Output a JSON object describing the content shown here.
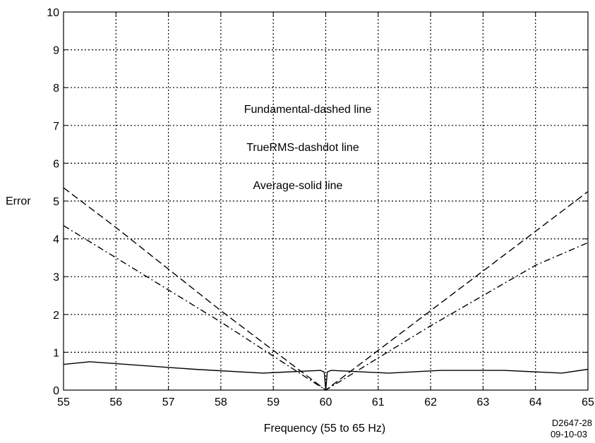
{
  "chart_data": {
    "type": "line",
    "xlabel": "Frequency (55 to 65 Hz)",
    "ylabel": "Error",
    "xlim": [
      55,
      65
    ],
    "ylim": [
      0,
      10
    ],
    "xticks": [
      55,
      56,
      57,
      58,
      59,
      60,
      61,
      62,
      63,
      64,
      65
    ],
    "yticks": [
      0,
      1,
      2,
      3,
      4,
      5,
      6,
      7,
      8,
      9,
      10
    ],
    "grid": true,
    "annotations": [
      "Fundamental-dashed line",
      "TrueRMS-dashdot line",
      "Average-solid line"
    ],
    "figure_code": [
      "D2647-28",
      "09-10-03"
    ],
    "series": [
      {
        "style": "dashed",
        "x": [
          55,
          56,
          57,
          58,
          59,
          60,
          61,
          62,
          63,
          64,
          65
        ],
        "y": [
          5.35,
          4.3,
          3.2,
          2.1,
          1.05,
          0,
          1.05,
          2.1,
          3.15,
          4.2,
          5.25
        ]
      },
      {
        "style": "dashdot",
        "x": [
          55,
          56,
          57,
          58,
          59,
          60,
          61,
          62,
          63,
          64,
          65
        ],
        "y": [
          4.35,
          3.5,
          2.65,
          1.8,
          0.9,
          0,
          0.85,
          1.7,
          2.5,
          3.3,
          3.9
        ]
      },
      {
        "style": "solid",
        "x": [
          55,
          55.5,
          56.5,
          57.5,
          58.8,
          59.9,
          59.97,
          60.0,
          60.03,
          60.1,
          61.2,
          62.2,
          63.4,
          64.5,
          65
        ],
        "y": [
          0.68,
          0.75,
          0.65,
          0.55,
          0.45,
          0.52,
          0.48,
          0.0,
          0.48,
          0.52,
          0.45,
          0.52,
          0.52,
          0.45,
          0.55
        ]
      }
    ]
  }
}
